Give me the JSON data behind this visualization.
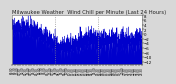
{
  "title": "Milwaukee Weather  Wind Chill per Minute (Last 24 Hours)",
  "bg_color": "#d8d8d8",
  "plot_bg_color": "#ffffff",
  "line_color": "#0000cc",
  "fill_color": "#0000cc",
  "y_min": -13,
  "y_max": 8,
  "y_ticks": [
    8,
    6,
    4,
    2,
    0,
    -2,
    -4,
    -6,
    -8,
    -10,
    -12
  ],
  "n_points": 1440,
  "seed": 42,
  "title_fontsize": 3.8,
  "tick_fontsize": 2.8,
  "vline_positions": [
    0.33,
    0.66
  ]
}
